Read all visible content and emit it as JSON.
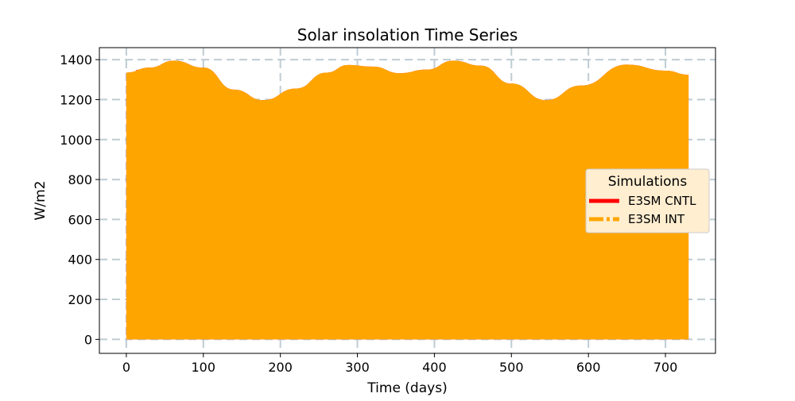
{
  "chart_data": {
    "type": "area",
    "title": "Solar insolation Time Series",
    "xlabel": "Time (days)",
    "ylabel": "W/m2",
    "xlim": [
      -35,
      765
    ],
    "ylim": [
      -70,
      1460
    ],
    "xticks": [
      0,
      100,
      200,
      300,
      400,
      500,
      600,
      700
    ],
    "yticks": [
      0,
      200,
      400,
      600,
      800,
      1000,
      1200,
      1400
    ],
    "grid": true,
    "legend": {
      "title": "Simulations",
      "placement": "center-right",
      "entries": [
        {
          "name": "E3SM CNTL",
          "color": "#ff0000",
          "style": "solid"
        },
        {
          "name": "E3SM INT",
          "color": "#ffa500",
          "style": "dashdot"
        }
      ]
    },
    "series": [
      {
        "name": "E3SM CNTL",
        "color": "#ff0000",
        "style": "solid",
        "min": 0,
        "envelope": {
          "x": [
            0,
            30,
            62,
            100,
            140,
            178,
            220,
            260,
            288,
            320,
            355,
            390,
            425,
            460,
            500,
            545,
            590,
            650,
            700,
            730
          ],
          "y": [
            1335,
            1360,
            1395,
            1360,
            1250,
            1197,
            1255,
            1335,
            1373,
            1365,
            1332,
            1350,
            1395,
            1370,
            1280,
            1197,
            1270,
            1375,
            1345,
            1325
          ]
        }
      },
      {
        "name": "E3SM INT",
        "color": "#ffa500",
        "style": "dashdot",
        "min": 0,
        "envelope": {
          "x": [
            0,
            30,
            62,
            100,
            140,
            178,
            220,
            260,
            288,
            320,
            355,
            390,
            425,
            460,
            500,
            545,
            590,
            650,
            700,
            730
          ],
          "y": [
            1335,
            1360,
            1395,
            1360,
            1250,
            1197,
            1255,
            1335,
            1373,
            1365,
            1332,
            1350,
            1395,
            1370,
            1280,
            1197,
            1270,
            1375,
            1345,
            1325
          ]
        }
      }
    ]
  }
}
